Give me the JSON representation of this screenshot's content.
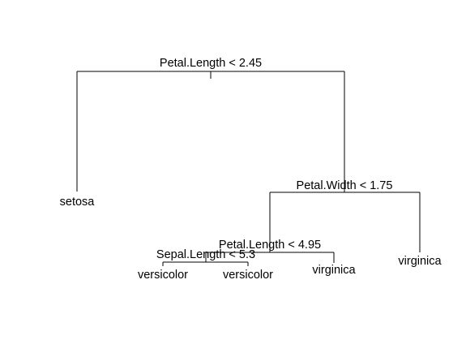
{
  "tree": {
    "splits": {
      "root": "Petal.Length < 2.45",
      "petal_width": "Petal.Width < 1.75",
      "petal_length_2": "Petal.Length < 4.95",
      "sepal_length": "Sepal.Length < 5.3"
    },
    "leaves": {
      "setosa": "setosa",
      "versicolor_left": "versicolor",
      "versicolor_right": "versicolor",
      "virginica_mid": "virginica",
      "virginica_right": "virginica"
    }
  }
}
